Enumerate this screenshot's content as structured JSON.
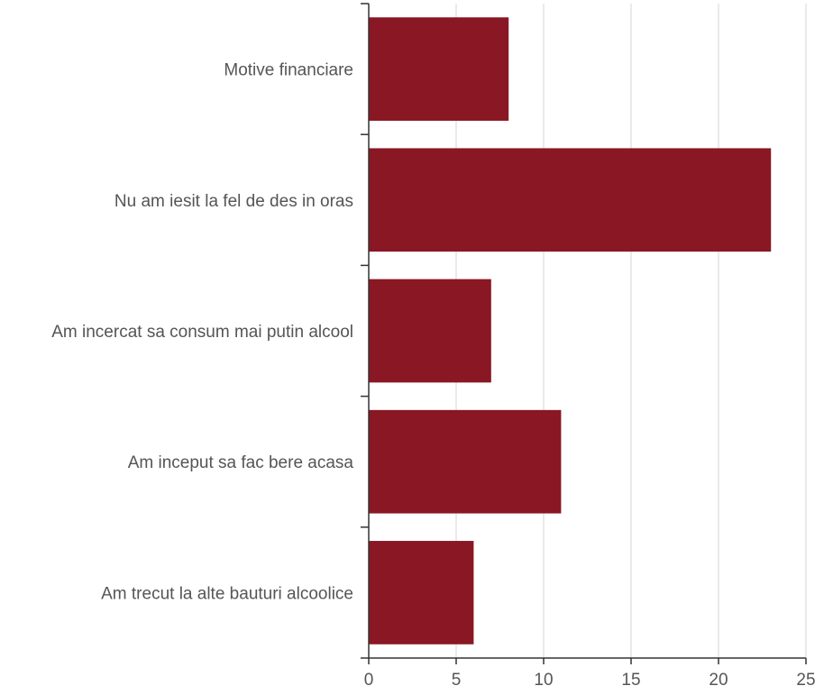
{
  "chart_data": {
    "type": "bar",
    "orientation": "horizontal",
    "categories": [
      "Motive financiare",
      "Nu am iesit la fel de des in oras",
      "Am incercat sa consum mai putin alcool",
      "Am inceput sa fac bere acasa",
      "Am trecut la alte bauturi alcoolice"
    ],
    "values": [
      8,
      23,
      7,
      11,
      6
    ],
    "xlim": [
      0,
      25
    ],
    "x_ticks": [
      0,
      5,
      10,
      15,
      20,
      25
    ],
    "grid": true,
    "legend": "none",
    "bar_color": "#8a1724"
  }
}
